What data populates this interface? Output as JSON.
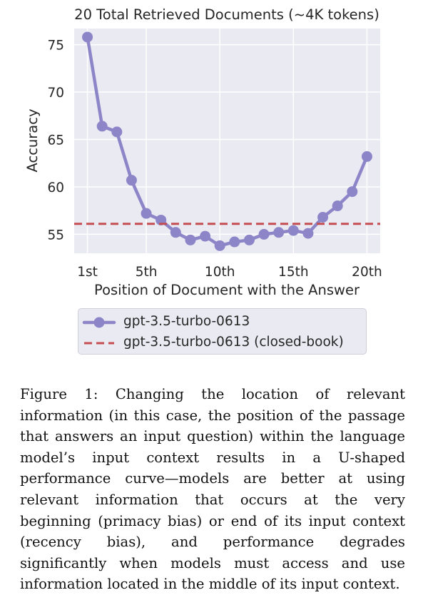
{
  "chart_data": {
    "type": "line",
    "title": "20 Total Retrieved Documents (~4K tokens)",
    "xlabel": "Position of Document with the Answer",
    "ylabel": "Accuracy",
    "x_ticks": [
      {
        "value": 1,
        "label": "1st"
      },
      {
        "value": 5,
        "label": "5th"
      },
      {
        "value": 10,
        "label": "10th"
      },
      {
        "value": 15,
        "label": "15th"
      },
      {
        "value": 20,
        "label": "20th"
      }
    ],
    "y_ticks": [
      55,
      60,
      65,
      70,
      75
    ],
    "xlim": [
      0.1,
      20.9
    ],
    "ylim": [
      53.0,
      76.7
    ],
    "grid": true,
    "legend_placement": "below",
    "series": [
      {
        "name": "gpt-3.5-turbo-0613",
        "style": "solid-line-markers",
        "color": "#8c86c9",
        "x": [
          1,
          2,
          3,
          4,
          5,
          6,
          7,
          8,
          9,
          10,
          11,
          12,
          13,
          14,
          15,
          16,
          17,
          18,
          19,
          20
        ],
        "values": [
          75.8,
          66.4,
          65.8,
          60.7,
          57.2,
          56.5,
          55.2,
          54.4,
          54.8,
          53.8,
          54.2,
          54.4,
          55.0,
          55.2,
          55.4,
          55.1,
          56.8,
          58.0,
          59.5,
          63.2
        ]
      },
      {
        "name": "gpt-3.5-turbo-0613 (closed-book)",
        "style": "dashed-horizontal",
        "color": "#c44e52",
        "constant": 56.1
      }
    ]
  },
  "legend": {
    "items": [
      {
        "label": "gpt-3.5-turbo-0613"
      },
      {
        "label": "gpt-3.5-turbo-0613 (closed-book)"
      }
    ]
  },
  "caption": "Figure 1: Changing the location of relevant information (in this case, the position of the passage that answers an input question) within the language model’s input context results in a U-shaped performance curve—models are better at using relevant information that occurs at the very beginning (primacy bias) or end of its input context (recency bias), and performance degrades significantly when models must access and use information located in the middle of its input context."
}
